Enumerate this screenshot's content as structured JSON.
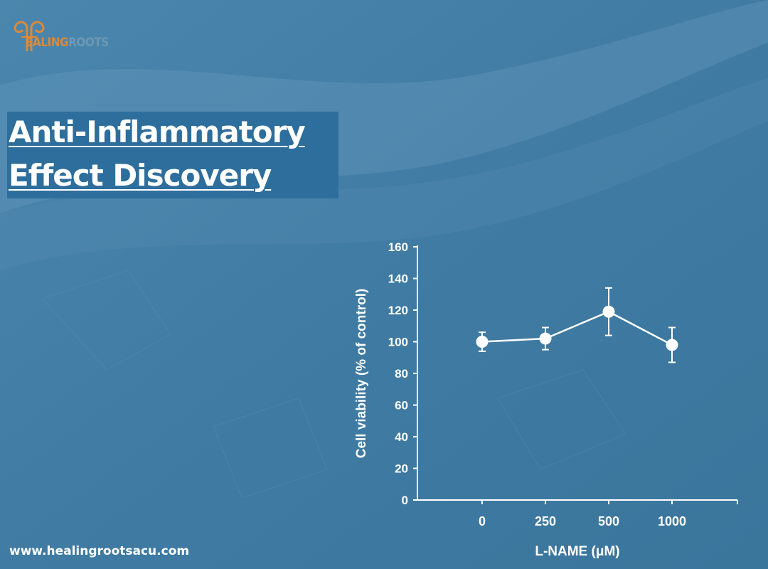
{
  "brand": {
    "logo_text_main": "EALING",
    "logo_text_faded": "ROOTS",
    "logo_colors": {
      "primary": "#d98a3c"
    }
  },
  "title": {
    "line1": "Anti-Inflammatory",
    "line2": "Effect Discovery"
  },
  "footer": {
    "url": "www.healingrootsacu.com"
  },
  "colors": {
    "background": "#3f7ba3",
    "title_box": "#2e6e9c",
    "text": "#ffffff"
  },
  "chart_data": {
    "type": "line",
    "categories": [
      "0",
      "250",
      "500",
      "1000"
    ],
    "series": [
      {
        "values": [
          100,
          102,
          119,
          98
        ],
        "errors": [
          6,
          7,
          15,
          11
        ]
      }
    ],
    "xlabel": "L-NAME (μM)",
    "ylabel": "Cell viability (% of control)",
    "ylim": [
      0,
      160
    ],
    "yticks": [
      0,
      20,
      40,
      60,
      80,
      100,
      120,
      140,
      160
    ],
    "grid": false,
    "marker": "filled-circle",
    "color": "#ffffff"
  }
}
